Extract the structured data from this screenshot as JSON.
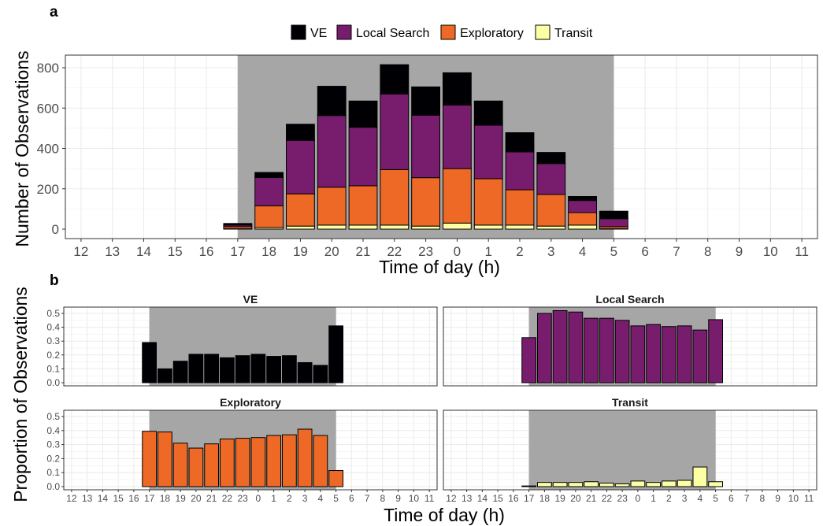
{
  "figure": {
    "panel_a_label": "a",
    "panel_b_label": "b"
  },
  "colors": {
    "VE": "#000004",
    "Local Search": "#781c6d",
    "Exploratory": "#ed6925",
    "Transit": "#fcffa4",
    "night_shading": "#a6a6a6",
    "grid": "#ebebeb"
  },
  "chart_data": [
    {
      "panel": "a",
      "type": "bar",
      "stacked": true,
      "xlabel": "Time of day (h)",
      "ylabel": "Number of Observations",
      "ylim": [
        0,
        850
      ],
      "yticks": [
        0,
        200,
        400,
        600,
        800
      ],
      "categories": [
        "12",
        "13",
        "14",
        "15",
        "16",
        "17",
        "18",
        "19",
        "20",
        "21",
        "22",
        "23",
        "0",
        "1",
        "2",
        "3",
        "4",
        "5",
        "6",
        "7",
        "8",
        "9",
        "10",
        "11"
      ],
      "night_shading_hours": [
        "17",
        "5"
      ],
      "legend": {
        "position": "top",
        "entries": [
          "VE",
          "Local Search",
          "Exploratory",
          "Transit"
        ]
      },
      "grid": true,
      "series": [
        {
          "name": "Transit",
          "values": [
            0,
            0,
            0,
            0,
            0,
            2,
            8,
            15,
            20,
            20,
            20,
            15,
            30,
            20,
            20,
            15,
            20,
            2,
            0,
            0,
            0,
            0,
            0,
            0
          ]
        },
        {
          "name": "Exploratory",
          "values": [
            0,
            0,
            0,
            0,
            0,
            10,
            108,
            160,
            188,
            195,
            275,
            240,
            270,
            230,
            175,
            157,
            62,
            10,
            0,
            0,
            0,
            0,
            0,
            0
          ]
        },
        {
          "name": "Local Search",
          "values": [
            0,
            0,
            0,
            0,
            0,
            8,
            140,
            265,
            355,
            290,
            375,
            310,
            315,
            265,
            188,
            153,
            60,
            40,
            0,
            0,
            0,
            0,
            0,
            0
          ]
        },
        {
          "name": "VE",
          "values": [
            0,
            0,
            0,
            0,
            0,
            8,
            25,
            80,
            145,
            130,
            145,
            140,
            160,
            120,
            95,
            55,
            20,
            37,
            0,
            0,
            0,
            0,
            0,
            0
          ]
        }
      ]
    },
    {
      "panel": "b",
      "type": "bar",
      "facets": [
        "VE",
        "Local Search",
        "Exploratory",
        "Transit"
      ],
      "xlabel": "Time of day (h)",
      "ylabel": "Proportion of Observations",
      "ylim": [
        0,
        0.52
      ],
      "yticks": [
        "0.0",
        "0.1",
        "0.2",
        "0.3",
        "0.4",
        "0.5"
      ],
      "categories": [
        "12",
        "13",
        "14",
        "15",
        "16",
        "17",
        "18",
        "19",
        "20",
        "21",
        "22",
        "23",
        "0",
        "1",
        "2",
        "3",
        "4",
        "5",
        "6",
        "7",
        "8",
        "9",
        "10",
        "11"
      ],
      "night_shading_hours": [
        "17",
        "5"
      ],
      "grid": true,
      "series": [
        {
          "name": "VE",
          "values": [
            null,
            null,
            null,
            null,
            null,
            0.29,
            0.1,
            0.155,
            0.205,
            0.205,
            0.18,
            0.195,
            0.205,
            0.19,
            0.195,
            0.145,
            0.125,
            0.41,
            null,
            null,
            null,
            null,
            null,
            null
          ]
        },
        {
          "name": "Local Search",
          "values": [
            null,
            null,
            null,
            null,
            null,
            0.325,
            0.5,
            0.52,
            0.51,
            0.465,
            0.465,
            0.45,
            0.41,
            0.42,
            0.405,
            0.41,
            0.38,
            0.455,
            null,
            null,
            null,
            null,
            null,
            null
          ]
        },
        {
          "name": "Exploratory",
          "values": [
            null,
            null,
            null,
            null,
            null,
            0.395,
            0.39,
            0.31,
            0.275,
            0.305,
            0.34,
            0.345,
            0.35,
            0.365,
            0.37,
            0.41,
            0.365,
            0.115,
            null,
            null,
            null,
            null,
            null,
            null
          ]
        },
        {
          "name": "Transit",
          "values": [
            null,
            null,
            null,
            null,
            null,
            0.005,
            0.03,
            0.03,
            0.03,
            0.035,
            0.025,
            0.02,
            0.04,
            0.03,
            0.04,
            0.045,
            0.14,
            0.035,
            null,
            null,
            null,
            null,
            null,
            null
          ]
        }
      ]
    }
  ]
}
